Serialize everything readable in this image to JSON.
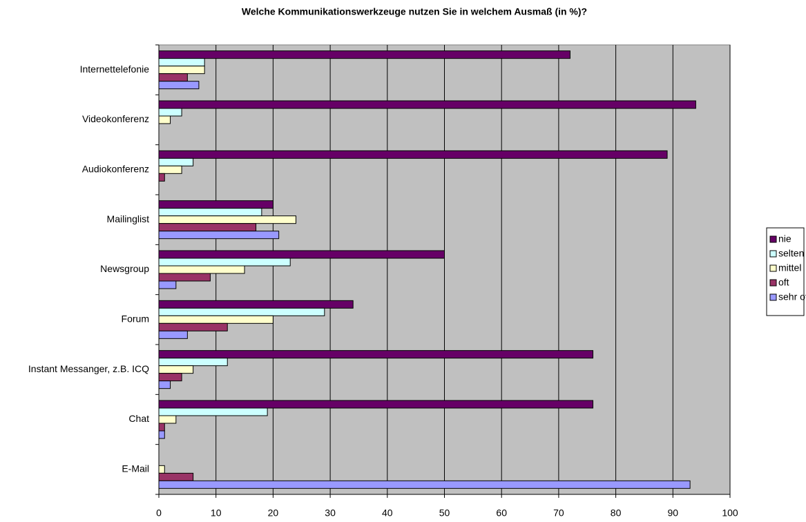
{
  "chart_data": {
    "type": "bar",
    "orientation": "horizontal",
    "title": "Welche Kommunikationswerkzeuge nutzen Sie in welchem Ausmaß (in %)?",
    "categories": [
      "Internettelefonie",
      "Videokonferenz",
      "Audiokonferenz",
      "Mailinglist",
      "Newsgroup",
      "Forum",
      "Instant Messanger, z.B. ICQ",
      "Chat",
      "E-Mail"
    ],
    "series": [
      {
        "name": "nie",
        "color": "#660066",
        "values": [
          72,
          94,
          89,
          20,
          50,
          34,
          76,
          76,
          0
        ]
      },
      {
        "name": "selten",
        "color": "#ccffff",
        "values": [
          8,
          4,
          6,
          18,
          23,
          29,
          12,
          19,
          0
        ]
      },
      {
        "name": "mittel",
        "color": "#ffffcc",
        "values": [
          8,
          2,
          4,
          24,
          15,
          20,
          6,
          3,
          1
        ]
      },
      {
        "name": "oft",
        "color": "#993366",
        "values": [
          5,
          0,
          1,
          17,
          9,
          12,
          4,
          1,
          6
        ]
      },
      {
        "name": "sehr oft",
        "color": "#9999ff",
        "values": [
          7,
          0,
          0,
          21,
          3,
          5,
          2,
          1,
          93
        ]
      }
    ],
    "xlim": [
      0,
      100
    ],
    "xticks": [
      0,
      10,
      20,
      30,
      40,
      50,
      60,
      70,
      80,
      90,
      100
    ],
    "grid": true,
    "legend": "right",
    "plot_background": "#c0c0c0"
  }
}
